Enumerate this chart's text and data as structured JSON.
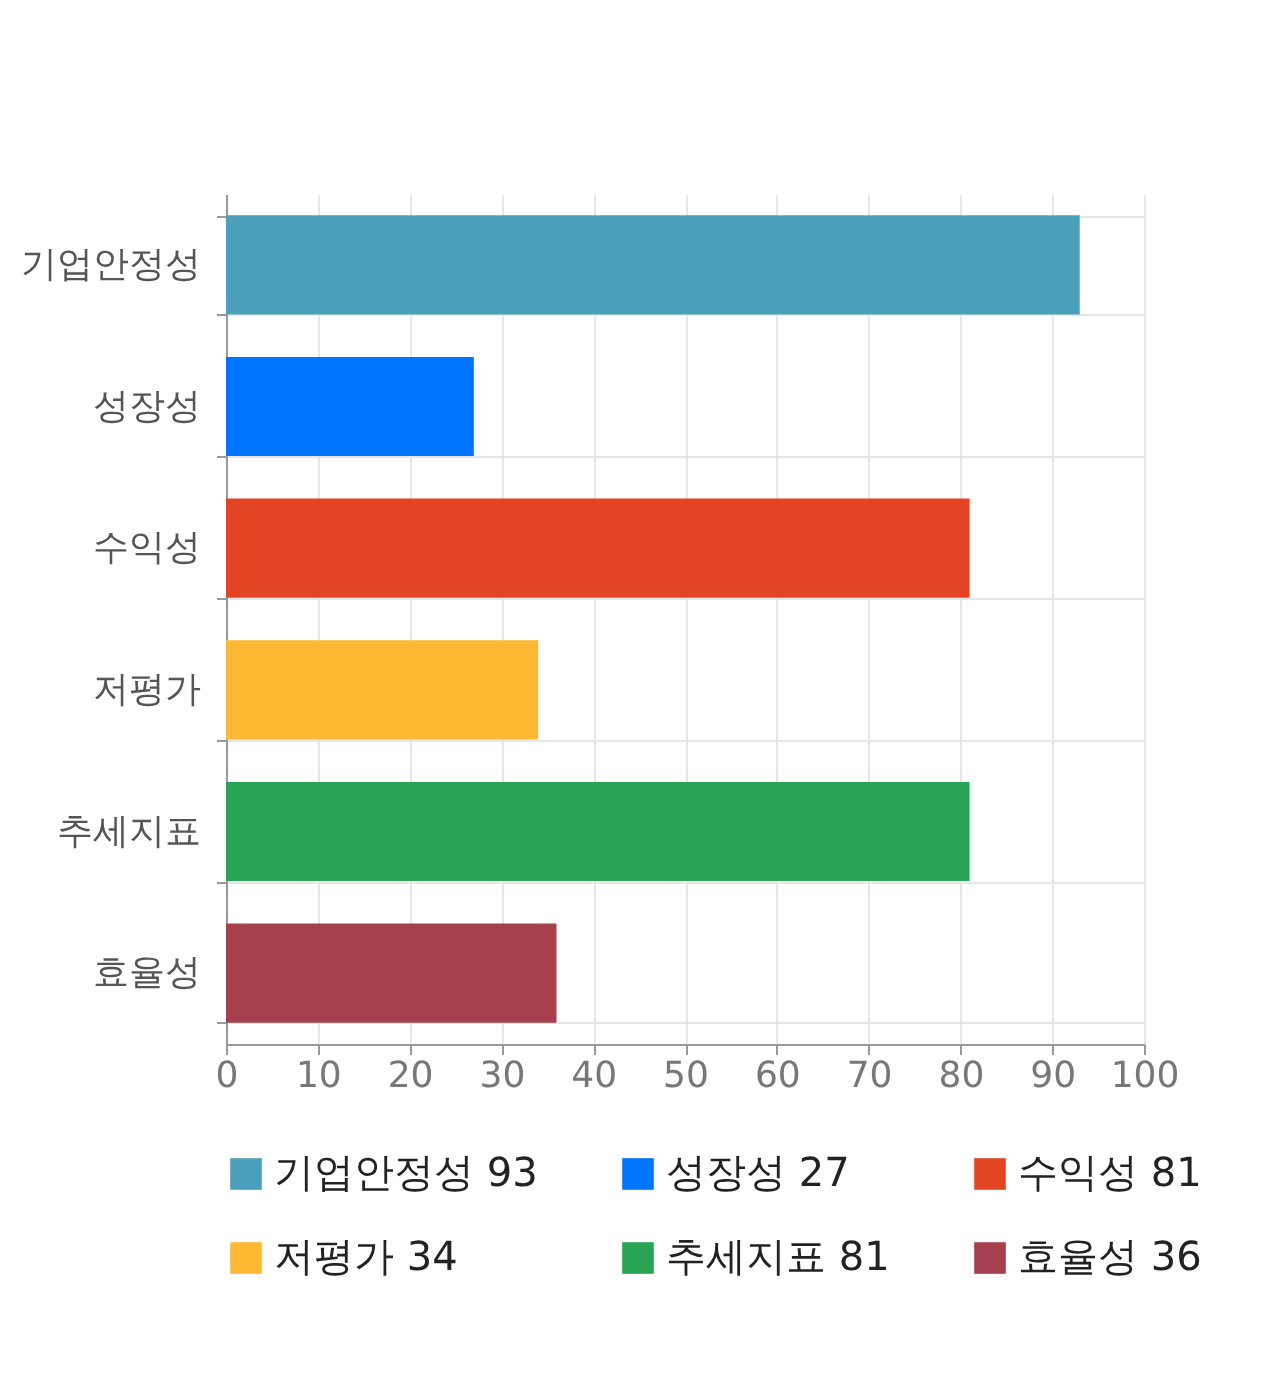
{
  "chart_data": {
    "type": "bar",
    "orientation": "horizontal",
    "categories": [
      "기업안정성",
      "성장성",
      "수익성",
      "저평가",
      "추세지표",
      "효율성"
    ],
    "series": [
      {
        "name": "기업안정성 93",
        "color": "#4aa0ba",
        "values": [
          93,
          null,
          null,
          null,
          null,
          null
        ]
      },
      {
        "name": "성장성 27",
        "color": "#0075ff",
        "values": [
          null,
          27,
          null,
          null,
          null,
          null
        ]
      },
      {
        "name": "수익성 81",
        "color": "#e34524",
        "values": [
          null,
          null,
          81,
          null,
          null,
          null
        ]
      },
      {
        "name": "저평가 34",
        "color": "#ffb833",
        "values": [
          null,
          null,
          null,
          34,
          null,
          null
        ]
      },
      {
        "name": "추세지표 81",
        "color": "#27a555",
        "values": [
          null,
          null,
          null,
          null,
          81,
          null
        ]
      },
      {
        "name": "효율성 36",
        "color": "#a6404e",
        "values": [
          null,
          null,
          null,
          null,
          null,
          36
        ]
      }
    ],
    "xlim": [
      0,
      100
    ],
    "xticks": [
      0,
      10,
      20,
      30,
      40,
      50,
      60,
      70,
      80,
      90,
      100
    ],
    "grid": true,
    "legend": "bottom"
  }
}
